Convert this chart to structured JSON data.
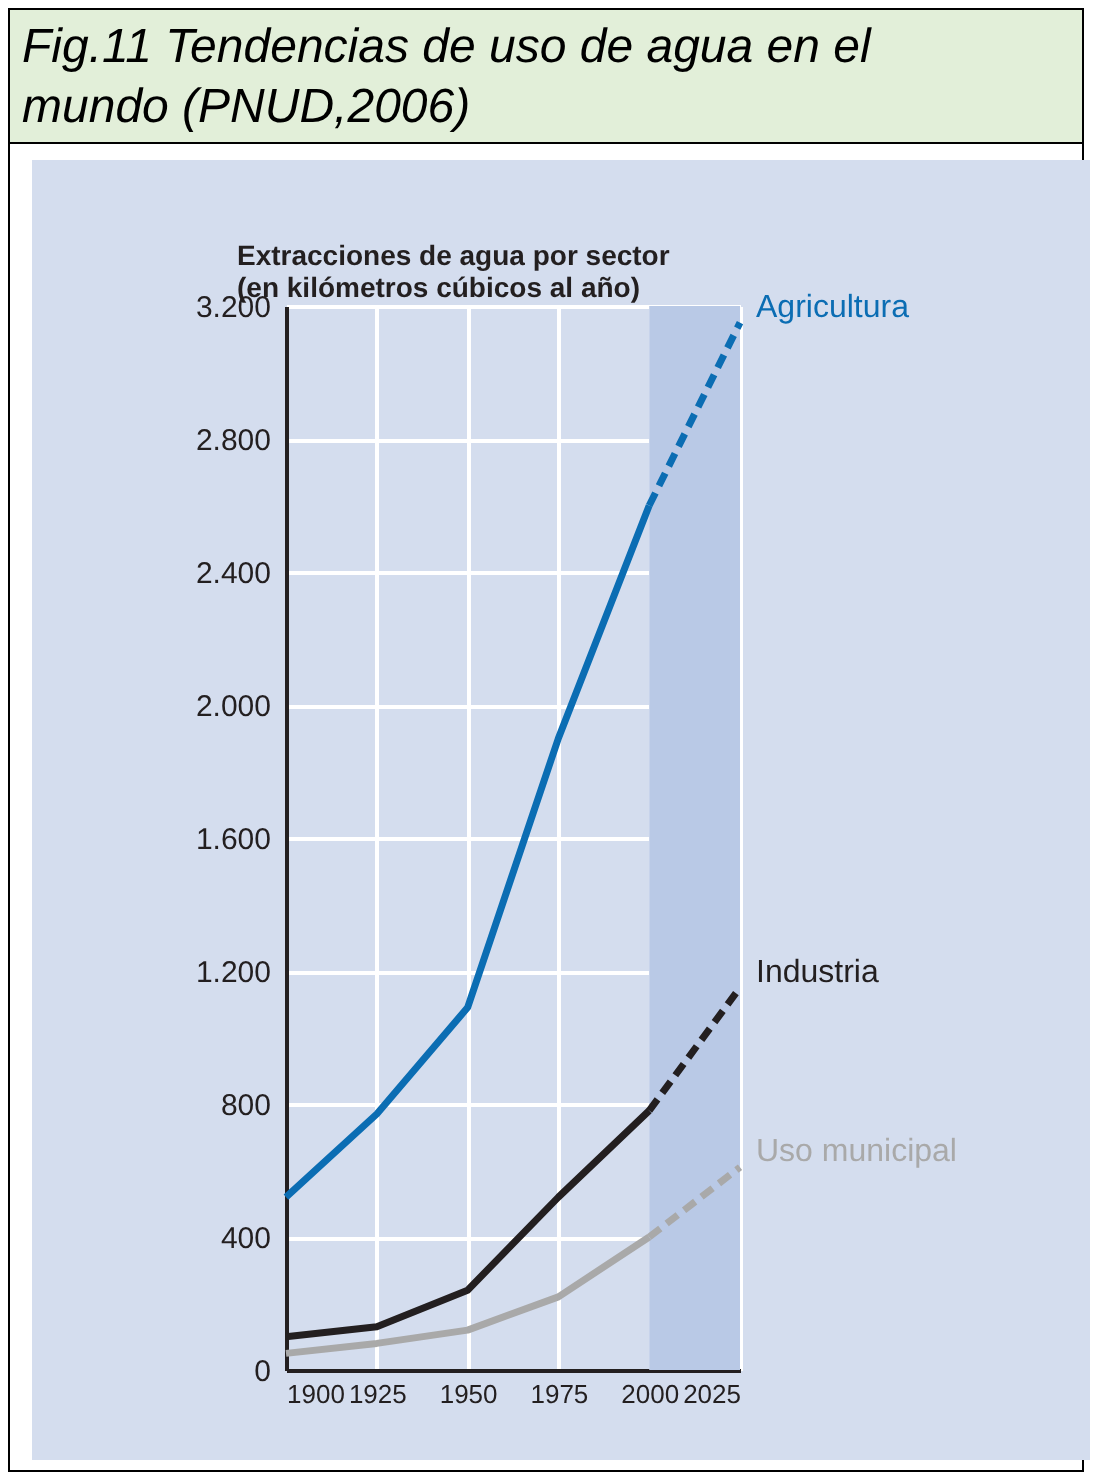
{
  "chart_data": {
    "type": "line",
    "title": "Fig.11 Tendencias de uso de agua en el mundo (PNUD,2006)",
    "ylabel": "Extracciones de agua por sector\n(en kilómetros cúbicos al año)",
    "xlim": [
      1900,
      2025
    ],
    "xticks": [
      1900,
      1925,
      1950,
      1975,
      2000,
      2025
    ],
    "ylim": [
      0,
      3200
    ],
    "yticks": [
      0,
      400,
      800,
      {
        "value": 1200,
        "label": "1.200"
      },
      {
        "value": 1600,
        "label": "1.600"
      },
      {
        "value": 2000,
        "label": "2.000"
      },
      {
        "value": 2400,
        "label": "2.400"
      },
      {
        "value": 2800,
        "label": "2.800"
      },
      {
        "value": 3200,
        "label": "3.200"
      }
    ],
    "grid": true,
    "legend": false,
    "marker": "none",
    "bands": [
      {
        "axis": "x",
        "from": 2000,
        "to": 2025,
        "color": "#b9c9e6"
      }
    ],
    "series": [
      {
        "name": "Agricultura",
        "color": "#0b6db3",
        "line_style": "solid",
        "x": [
          1900,
          1925,
          1950,
          1975,
          2000
        ],
        "values": [
          520,
          770,
          1090,
          1900,
          2600
        ]
      },
      {
        "color": "#0b6db3",
        "line_style": "dashed",
        "x": [
          2000,
          2025
        ],
        "values": [
          2600,
          3150
        ]
      },
      {
        "name": "Industria",
        "color": "#231f20",
        "line_style": "solid",
        "x": [
          1900,
          1925,
          1950,
          1975,
          2000
        ],
        "values": [
          100,
          130,
          240,
          520,
          780
        ]
      },
      {
        "color": "#231f20",
        "line_style": "dashed",
        "x": [
          2000,
          2025
        ],
        "values": [
          780,
          1150
        ]
      },
      {
        "name": "Uso municipal",
        "color": "#a9a9a9",
        "line_style": "solid",
        "x": [
          1900,
          1925,
          1950,
          1975,
          2000
        ],
        "values": [
          50,
          80,
          120,
          220,
          400
        ]
      },
      {
        "color": "#a9a9a9",
        "line_style": "dashed",
        "x": [
          2000,
          2025
        ],
        "values": [
          400,
          610
        ]
      }
    ]
  }
}
